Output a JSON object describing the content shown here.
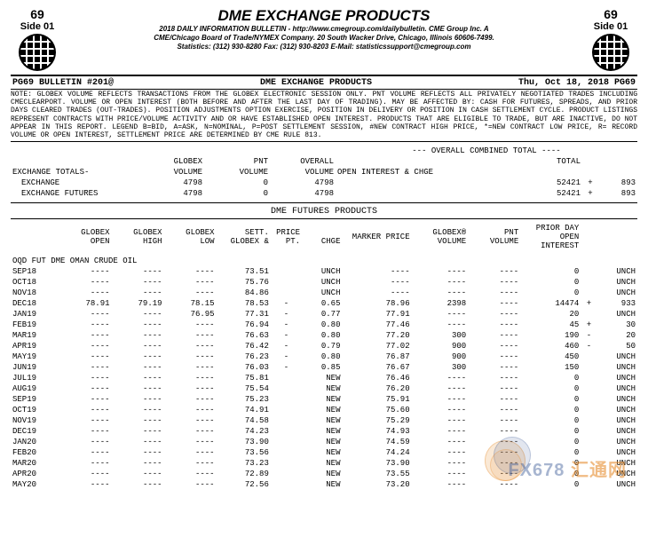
{
  "header": {
    "page_num": "69",
    "side": "Side 01",
    "title": "DME EXCHANGE PRODUCTS",
    "line1": "2018 DAILY INFORMATION BULLETIN - http://www.cmegroup.com/dailybulletin. CME Group Inc. A",
    "line2": "CME/Chicago Board of Trade/NYMEX Company. 20 South Wacker Drive, Chicago, Illinois 60606-7499.",
    "line3": "Statistics: (312) 930-8280 Fax: (312) 930-8203 E-Mail: statisticssupport@cmegroup.com"
  },
  "bulletin": {
    "left": "PG69  BULLETIN #201@",
    "center": "DME EXCHANGE PRODUCTS",
    "right": "Thu, Oct 18, 2018  PG69"
  },
  "note": "NOTE: GLOBEX VOLUME REFLECTS TRANSACTIONS FROM THE GLOBEX ELECTRONIC SESSION ONLY. PNT VOLUME REFLECTS ALL PRIVATELY NEGOTIATED TRADES INCLUDING CMECLEARPORT. VOLUME OR OPEN INTEREST (BOTH BEFORE AND AFTER THE LAST DAY OF TRADING). MAY BE AFFECTED BY: CASH FOR FUTURES, SPREADS, AND PRIOR DAYS CLEARED TRADES (OUT-TRADES). POSITION ADJUSTMENTS OPTION EXERCISE, POSITION IN DELIVERY OR POSITION IN CASH SETTLEMENT CYCLE. PRODUCT LISTINGS REPRESENT CONTRACTS WITH PRICE/VOLUME ACTIVITY AND OR HAVE ESTABLISHED OPEN INTEREST. PRODUCTS THAT ARE ELIGIBLE TO TRADE, BUT ARE INACTIVE, DO NOT APPEAR IN THIS REPORT. LEGEND B=BID, A=ASK, N=NOMINAL, P=POST SETTLEMENT SESSION, #NEW CONTRACT HIGH PRICE, *=NEW CONTRACT LOW PRICE, R= RECORD VOLUME OR OPEN INTEREST, SETTLEMENT PRICE ARE DETERMINED BY CME RULE 813.",
  "overall_label": "--- OVERALL COMBINED TOTAL ----",
  "totals_header": {
    "c1": "GLOBEX\nVOLUME",
    "c2": "PNT\nVOLUME",
    "c3": "OVERALL\nVOLUME",
    "c4": "TOTAL\nOPEN INTEREST & CHGE"
  },
  "totals": {
    "label": "EXCHANGE TOTALS-",
    "rows": [
      {
        "name": "EXCHANGE",
        "gv": "4798",
        "pv": "0",
        "ov": "4798",
        "oi": "52421",
        "sign": "+",
        "chg": "893"
      },
      {
        "name": "EXCHANGE FUTURES",
        "gv": "4798",
        "pv": "0",
        "ov": "4798",
        "oi": "52421",
        "sign": "+",
        "chg": "893"
      }
    ]
  },
  "futures_section": "DME FUTURES PRODUCTS",
  "col_headers": {
    "c0": "",
    "c1": "GLOBEX\nOPEN",
    "c2": "GLOBEX\nHIGH",
    "c3": "GLOBEX\nLOW",
    "c4": "SETT. PRICE\nGLOBEX & PT. CHGE",
    "c5": "MARKER PRICE",
    "c6": "GLOBEX®\nVOLUME",
    "c7": "PNT\nVOLUME",
    "c8": "PRIOR DAY\nOPEN\nINTEREST"
  },
  "product_line": "OQD FUT                    DME OMAN CRUDE OIL",
  "rows": [
    {
      "m": "SEP18",
      "o": "----",
      "h": "----",
      "l": "----",
      "sp": "73.51",
      "ps": "",
      "pc": "UNCH",
      "mp": "----",
      "gv": "----",
      "pv": "----",
      "oi": "0",
      "os": "",
      "oc": "UNCH"
    },
    {
      "m": "OCT18",
      "o": "----",
      "h": "----",
      "l": "----",
      "sp": "75.76",
      "ps": "",
      "pc": "UNCH",
      "mp": "----",
      "gv": "----",
      "pv": "----",
      "oi": "0",
      "os": "",
      "oc": "UNCH"
    },
    {
      "m": "NOV18",
      "o": "----",
      "h": "----",
      "l": "----",
      "sp": "84.86",
      "ps": "",
      "pc": "UNCH",
      "mp": "----",
      "gv": "----",
      "pv": "----",
      "oi": "0",
      "os": "",
      "oc": "UNCH"
    },
    {
      "m": "DEC18",
      "o": "78.91",
      "h": "79.19",
      "l": "78.15",
      "sp": "78.53",
      "ps": "-",
      "pc": "0.65",
      "mp": "78.96",
      "gv": "2398",
      "pv": "----",
      "oi": "14474",
      "os": "+",
      "oc": "933"
    },
    {
      "m": "JAN19",
      "o": "----",
      "h": "----",
      "l": "76.95",
      "sp": "77.31",
      "ps": "-",
      "pc": "0.77",
      "mp": "77.91",
      "gv": "----",
      "pv": "----",
      "oi": "20",
      "os": "",
      "oc": "UNCH"
    },
    {
      "m": "FEB19",
      "o": "----",
      "h": "----",
      "l": "----",
      "sp": "76.94",
      "ps": "-",
      "pc": "0.80",
      "mp": "77.46",
      "gv": "----",
      "pv": "----",
      "oi": "45",
      "os": "+",
      "oc": "30"
    },
    {
      "m": "MAR19",
      "o": "----",
      "h": "----",
      "l": "----",
      "sp": "76.63",
      "ps": "-",
      "pc": "0.80",
      "mp": "77.20",
      "gv": "300",
      "pv": "----",
      "oi": "190",
      "os": "-",
      "oc": "20"
    },
    {
      "m": "APR19",
      "o": "----",
      "h": "----",
      "l": "----",
      "sp": "76.42",
      "ps": "-",
      "pc": "0.79",
      "mp": "77.02",
      "gv": "900",
      "pv": "----",
      "oi": "460",
      "os": "-",
      "oc": "50"
    },
    {
      "m": "MAY19",
      "o": "----",
      "h": "----",
      "l": "----",
      "sp": "76.23",
      "ps": "-",
      "pc": "0.80",
      "mp": "76.87",
      "gv": "900",
      "pv": "----",
      "oi": "450",
      "os": "",
      "oc": "UNCH"
    },
    {
      "m": "JUN19",
      "o": "----",
      "h": "----",
      "l": "----",
      "sp": "76.03",
      "ps": "-",
      "pc": "0.85",
      "mp": "76.67",
      "gv": "300",
      "pv": "----",
      "oi": "150",
      "os": "",
      "oc": "UNCH"
    },
    {
      "m": "JUL19",
      "o": "----",
      "h": "----",
      "l": "----",
      "sp": "75.81",
      "ps": "",
      "pc": "NEW",
      "mp": "76.46",
      "gv": "----",
      "pv": "----",
      "oi": "0",
      "os": "",
      "oc": "UNCH"
    },
    {
      "m": "AUG19",
      "o": "----",
      "h": "----",
      "l": "----",
      "sp": "75.54",
      "ps": "",
      "pc": "NEW",
      "mp": "76.20",
      "gv": "----",
      "pv": "----",
      "oi": "0",
      "os": "",
      "oc": "UNCH"
    },
    {
      "m": "SEP19",
      "o": "----",
      "h": "----",
      "l": "----",
      "sp": "75.23",
      "ps": "",
      "pc": "NEW",
      "mp": "75.91",
      "gv": "----",
      "pv": "----",
      "oi": "0",
      "os": "",
      "oc": "UNCH"
    },
    {
      "m": "OCT19",
      "o": "----",
      "h": "----",
      "l": "----",
      "sp": "74.91",
      "ps": "",
      "pc": "NEW",
      "mp": "75.60",
      "gv": "----",
      "pv": "----",
      "oi": "0",
      "os": "",
      "oc": "UNCH"
    },
    {
      "m": "NOV19",
      "o": "----",
      "h": "----",
      "l": "----",
      "sp": "74.58",
      "ps": "",
      "pc": "NEW",
      "mp": "75.29",
      "gv": "----",
      "pv": "----",
      "oi": "0",
      "os": "",
      "oc": "UNCH"
    },
    {
      "m": "DEC19",
      "o": "----",
      "h": "----",
      "l": "----",
      "sp": "74.23",
      "ps": "",
      "pc": "NEW",
      "mp": "74.93",
      "gv": "----",
      "pv": "----",
      "oi": "0",
      "os": "",
      "oc": "UNCH"
    },
    {
      "m": "JAN20",
      "o": "----",
      "h": "----",
      "l": "----",
      "sp": "73.90",
      "ps": "",
      "pc": "NEW",
      "mp": "74.59",
      "gv": "----",
      "pv": "----",
      "oi": "0",
      "os": "",
      "oc": "UNCH"
    },
    {
      "m": "FEB20",
      "o": "----",
      "h": "----",
      "l": "----",
      "sp": "73.56",
      "ps": "",
      "pc": "NEW",
      "mp": "74.24",
      "gv": "----",
      "pv": "----",
      "oi": "0",
      "os": "",
      "oc": "UNCH"
    },
    {
      "m": "MAR20",
      "o": "----",
      "h": "----",
      "l": "----",
      "sp": "73.23",
      "ps": "",
      "pc": "NEW",
      "mp": "73.90",
      "gv": "----",
      "pv": "----",
      "oi": "0",
      "os": "",
      "oc": "UNCH"
    },
    {
      "m": "APR20",
      "o": "----",
      "h": "----",
      "l": "----",
      "sp": "72.89",
      "ps": "",
      "pc": "NEW",
      "mp": "73.55",
      "gv": "----",
      "pv": "----",
      "oi": "0",
      "os": "",
      "oc": "UNCH"
    },
    {
      "m": "MAY20",
      "o": "----",
      "h": "----",
      "l": "----",
      "sp": "72.56",
      "ps": "",
      "pc": "NEW",
      "mp": "73.20",
      "gv": "----",
      "pv": "----",
      "oi": "0",
      "os": "",
      "oc": "UNCH"
    }
  ],
  "watermark": {
    "t1": "FX678",
    "t2": "汇通网"
  }
}
